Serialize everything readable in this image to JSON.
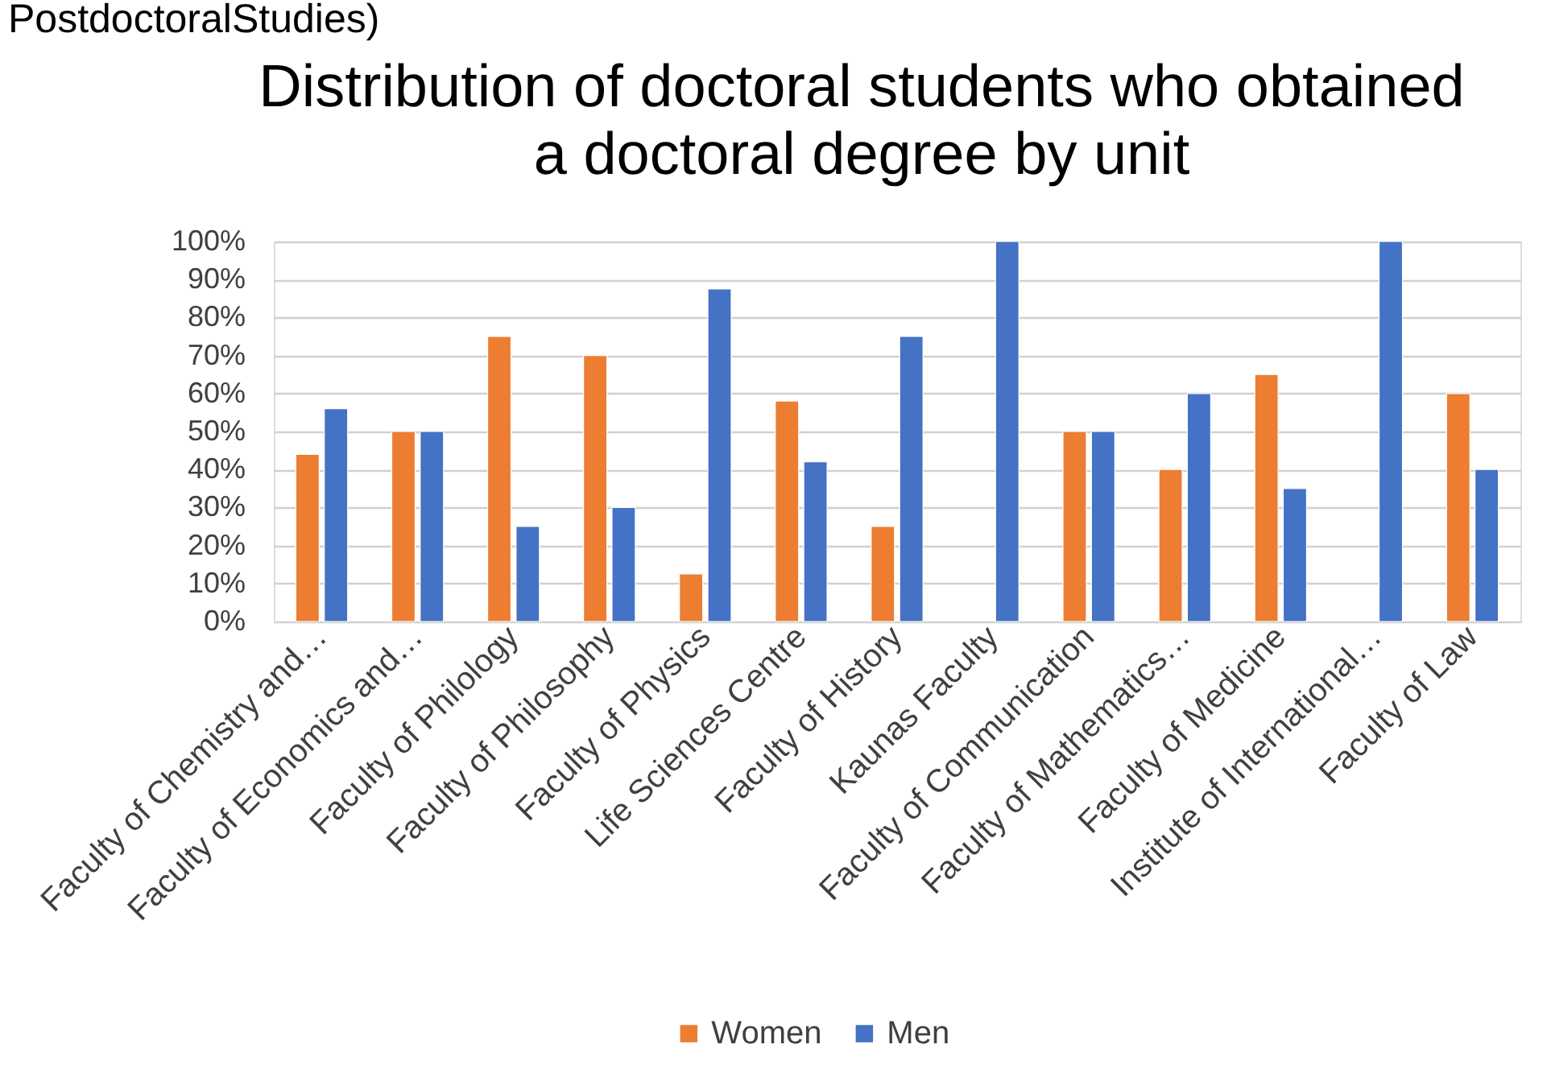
{
  "chart_data": {
    "type": "bar",
    "title": "Distribution of doctoral students who obtained a doctoral degree by unit",
    "annotations": [
      "PostdoctoralStudies)"
    ],
    "categories": [
      "Faculty of Chemistry and…",
      "Faculty of Economics and…",
      "Faculty of Philology",
      "Faculty of Philosophy",
      "Faculty of Physics",
      "Life Sciences Centre",
      "Faculty of History",
      "Kaunas Faculty",
      "Faculty of Communication",
      "Faculty of Mathematics…",
      "Faculty of Medicine",
      "Institute of International…",
      "Faculty of Law"
    ],
    "series": [
      {
        "name": "Women",
        "color": "#ed7d31",
        "values": [
          44,
          50,
          75,
          70,
          12.5,
          58,
          25,
          null,
          50,
          40,
          65,
          null,
          60
        ]
      },
      {
        "name": "Men",
        "color": "#4472c4",
        "values": [
          56,
          50,
          25,
          30,
          87.5,
          42,
          75,
          100,
          50,
          60,
          35,
          100,
          40
        ]
      }
    ],
    "ylim": [
      0,
      100
    ],
    "yticks": [
      {
        "value": 0,
        "label": "0%"
      },
      {
        "value": 10,
        "label": "10%"
      },
      {
        "value": 20,
        "label": "20%"
      },
      {
        "value": 30,
        "label": "30%"
      },
      {
        "value": 40,
        "label": "40%"
      },
      {
        "value": 50,
        "label": "50%"
      },
      {
        "value": 60,
        "label": "60%"
      },
      {
        "value": 70,
        "label": "70%"
      },
      {
        "value": 80,
        "label": "80%"
      },
      {
        "value": 90,
        "label": "90%"
      },
      {
        "value": 100,
        "label": "100%"
      }
    ],
    "grid": "y",
    "legend": "bottom"
  }
}
